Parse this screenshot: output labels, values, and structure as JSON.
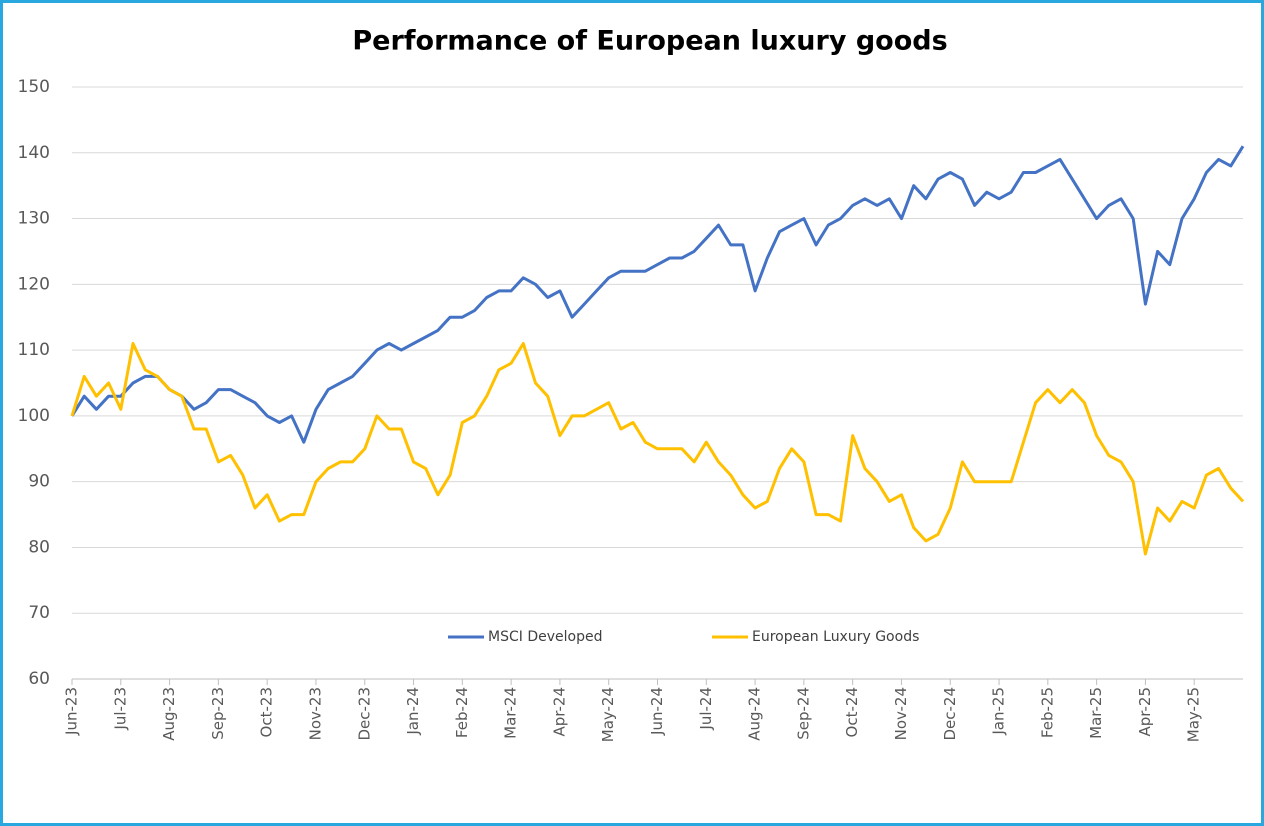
{
  "chart_data": {
    "type": "line",
    "title": "Performance of European luxury goods",
    "categories": [
      "Jun-23",
      null,
      null,
      null,
      "Jul-23",
      null,
      null,
      null,
      "Aug-23",
      null,
      null,
      null,
      "Sep-23",
      null,
      null,
      null,
      "Oct-23",
      null,
      null,
      null,
      "Nov-23",
      null,
      null,
      null,
      "Dec-23",
      null,
      null,
      null,
      "Jan-24",
      null,
      null,
      null,
      "Feb-24",
      null,
      null,
      null,
      "Mar-24",
      null,
      null,
      null,
      "Apr-24",
      null,
      null,
      null,
      "May-24",
      null,
      null,
      null,
      "Jun-24",
      null,
      null,
      null,
      "Jul-24",
      null,
      null,
      null,
      "Aug-24",
      null,
      null,
      null,
      "Sep-24",
      null,
      null,
      null,
      "Oct-24",
      null,
      null,
      null,
      "Nov-24",
      null,
      null,
      null,
      "Dec-24",
      null,
      null,
      null,
      "Jan-25",
      null,
      null,
      null,
      "Feb-25",
      null,
      null,
      null,
      "Mar-25",
      null,
      null,
      null,
      "Apr-25",
      null,
      null,
      null,
      "May-25",
      null,
      null,
      null,
      null
    ],
    "series": [
      {
        "name": "MSCI Developed",
        "color": "#4472c4",
        "values": [
          100,
          103,
          101,
          103,
          103,
          105,
          106,
          106,
          104,
          103,
          101,
          102,
          104,
          104,
          103,
          102,
          100,
          99,
          100,
          96,
          101,
          104,
          105,
          106,
          108,
          110,
          111,
          110,
          111,
          112,
          113,
          115,
          115,
          116,
          118,
          119,
          119,
          121,
          120,
          118,
          119,
          115,
          117,
          119,
          121,
          122,
          122,
          122,
          123,
          124,
          124,
          125,
          127,
          129,
          126,
          126,
          119,
          124,
          128,
          129,
          130,
          126,
          129,
          130,
          132,
          133,
          132,
          133,
          130,
          135,
          133,
          136,
          137,
          136,
          132,
          134,
          133,
          134,
          137,
          137,
          138,
          139,
          136,
          133,
          130,
          132,
          133,
          130,
          117,
          125,
          123,
          130,
          133,
          137,
          139,
          138,
          141
        ]
      },
      {
        "name": "European Luxury Goods",
        "color": "#ffc000",
        "values": [
          100,
          106,
          103,
          105,
          101,
          111,
          107,
          106,
          104,
          103,
          98,
          98,
          93,
          94,
          91,
          86,
          88,
          84,
          85,
          85,
          90,
          92,
          93,
          93,
          95,
          100,
          98,
          98,
          93,
          92,
          88,
          91,
          99,
          100,
          103,
          107,
          108,
          111,
          105,
          103,
          97,
          100,
          100,
          101,
          102,
          98,
          99,
          96,
          95,
          95,
          95,
          93,
          96,
          93,
          91,
          88,
          86,
          87,
          92,
          95,
          93,
          85,
          85,
          84,
          97,
          92,
          90,
          87,
          88,
          83,
          81,
          82,
          86,
          93,
          90,
          90,
          90,
          90,
          96,
          102,
          104,
          102,
          104,
          102,
          97,
          94,
          93,
          90,
          79,
          86,
          84,
          87,
          86,
          91,
          92,
          89,
          87
        ]
      }
    ],
    "ylim": [
      60,
      150
    ],
    "yticks": [
      60,
      70,
      80,
      90,
      100,
      110,
      120,
      130,
      140,
      150
    ],
    "grid": true,
    "legend": "bottom"
  }
}
